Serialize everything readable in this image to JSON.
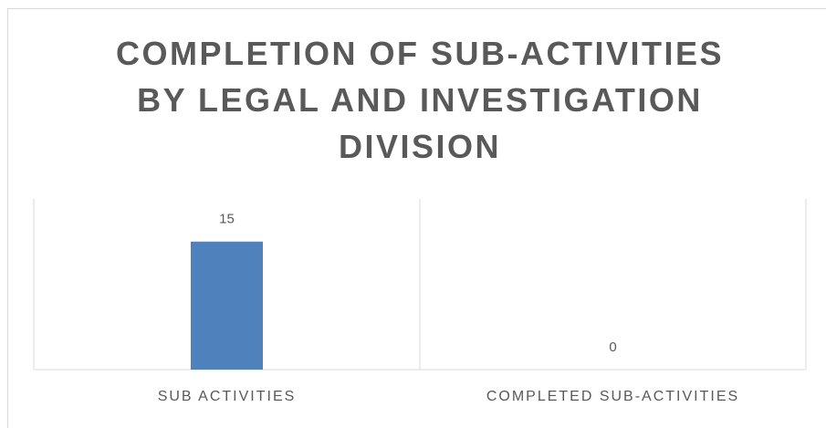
{
  "chart_data": {
    "type": "bar",
    "title": "COMPLETION OF SUB-ACTIVITIES BY LEGAL AND INVESTIGATION DIVISION",
    "categories": [
      "SUB ACTIVITIES",
      "COMPLETED SUB-ACTIVITIES"
    ],
    "values": [
      15,
      0
    ],
    "color": "#4f81bd",
    "ylim": [
      0,
      20
    ],
    "grid": false
  }
}
